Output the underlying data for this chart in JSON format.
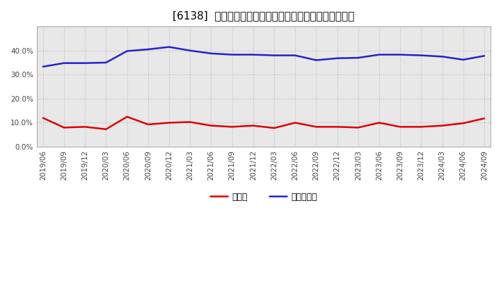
{
  "title": "[6138]  現預金、有利子負債の総資産に対する比率の推移",
  "x_labels": [
    "2019/06",
    "2019/09",
    "2019/12",
    "2020/03",
    "2020/06",
    "2020/09",
    "2020/12",
    "2021/03",
    "2021/06",
    "2021/09",
    "2021/12",
    "2022/03",
    "2022/06",
    "2022/09",
    "2022/12",
    "2023/03",
    "2023/06",
    "2023/09",
    "2023/12",
    "2024/03",
    "2024/06",
    "2024/09"
  ],
  "cash": [
    0.12,
    0.08,
    0.083,
    0.073,
    0.125,
    0.093,
    0.1,
    0.103,
    0.088,
    0.083,
    0.088,
    0.078,
    0.1,
    0.083,
    0.083,
    0.08,
    0.1,
    0.083,
    0.083,
    0.088,
    0.098,
    0.118
  ],
  "debt": [
    0.333,
    0.348,
    0.348,
    0.35,
    0.398,
    0.405,
    0.415,
    0.4,
    0.388,
    0.383,
    0.383,
    0.38,
    0.38,
    0.36,
    0.368,
    0.37,
    0.383,
    0.383,
    0.38,
    0.375,
    0.362,
    0.378
  ],
  "cash_color": "#dd0000",
  "debt_color": "#2222cc",
  "background_color": "#ffffff",
  "plot_bg_color": "#e8e8e8",
  "grid_color": "#bbbbbb",
  "ylim": [
    0.0,
    0.5
  ],
  "yticks": [
    0.0,
    0.1,
    0.2,
    0.3,
    0.4
  ],
  "legend_cash": "現預金",
  "legend_debt": "有利子負債",
  "title_fontsize": 11,
  "tick_fontsize": 7.5,
  "line_width": 1.8
}
